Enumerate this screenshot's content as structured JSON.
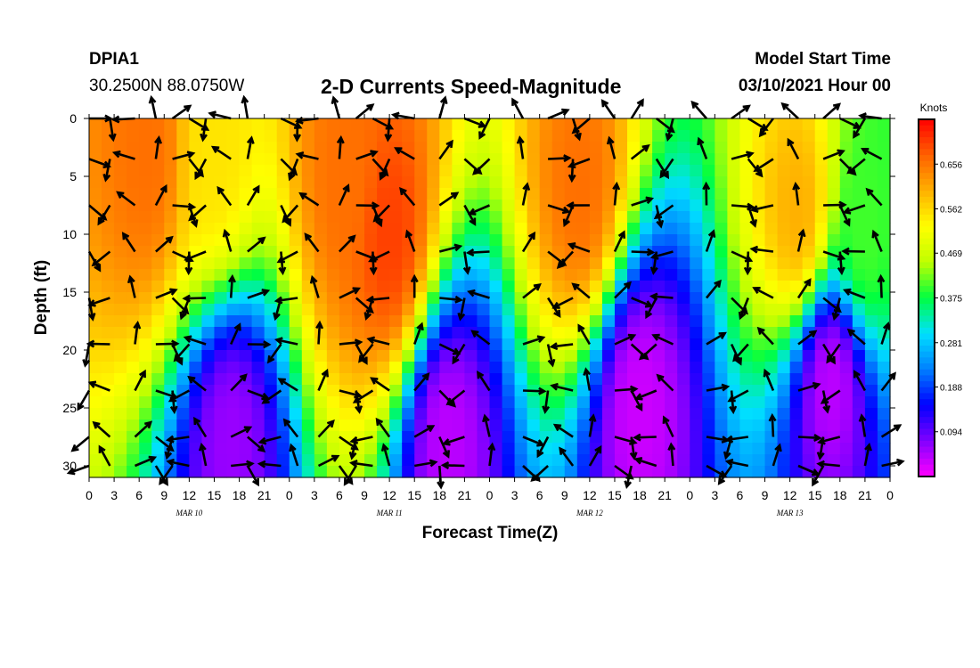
{
  "header": {
    "station": "DPIA1",
    "coords": "30.2500N 88.0750W",
    "title": "2-D Currents Speed-Magnitude",
    "model_start_label": "Model Start Time",
    "model_start_value": "03/10/2021 Hour 00"
  },
  "chart_data": {
    "type": "heatmap",
    "title": "2-D Currents Speed-Magnitude",
    "xlabel": "Forecast Time(Z)",
    "ylabel": "Depth (ft)",
    "x_range_hours": [
      0,
      96
    ],
    "x_tick_labels": [
      "0",
      "3",
      "6",
      "9",
      "12",
      "15",
      "18",
      "21",
      "0",
      "3",
      "6",
      "9",
      "12",
      "15",
      "18",
      "21",
      "0",
      "3",
      "6",
      "9",
      "12",
      "15",
      "18",
      "21",
      "0",
      "3",
      "6",
      "9",
      "12",
      "15",
      "18",
      "21",
      "0"
    ],
    "day_labels": [
      {
        "label": "MAR 10",
        "hour": 12
      },
      {
        "label": "MAR 11",
        "hour": 36
      },
      {
        "label": "MAR 12",
        "hour": 60
      },
      {
        "label": "MAR 13",
        "hour": 84
      }
    ],
    "y_range_ft": [
      0,
      31
    ],
    "y_inverted": true,
    "y_ticks": [
      0,
      5,
      10,
      15,
      20,
      25,
      30
    ],
    "colorbar": {
      "title": "Knots",
      "ticks": [
        0.094,
        0.188,
        0.281,
        0.375,
        0.469,
        0.562,
        0.656
      ],
      "range": [
        0,
        0.75
      ],
      "colors": [
        "#ff00ff",
        "#8000ff",
        "#0000ff",
        "#0080ff",
        "#00e0ff",
        "#00ff40",
        "#c0ff00",
        "#ffff00",
        "#ffb000",
        "#ff6000",
        "#ff0000"
      ]
    },
    "speed_maxima": [
      {
        "hour": 7,
        "depth": 3,
        "speed": 0.66
      },
      {
        "hour": 15,
        "depth": 3,
        "speed": 0.55
      },
      {
        "hour": 31,
        "depth": 5,
        "speed": 0.66
      },
      {
        "hour": 36,
        "depth": 10,
        "speed": 0.7
      },
      {
        "hour": 59,
        "depth": 6,
        "speed": 0.66
      },
      {
        "hour": 85,
        "depth": 8,
        "speed": 0.6
      },
      {
        "hour": 93,
        "depth": 10,
        "speed": 0.4
      }
    ],
    "speed_minima": [
      {
        "hour": 17,
        "depth": 28,
        "speed": 0.06
      },
      {
        "hour": 43,
        "depth": 28,
        "speed": 0.04
      },
      {
        "hour": 66,
        "depth": 25,
        "speed": 0.03
      },
      {
        "hour": 89,
        "depth": 23,
        "speed": 0.04
      }
    ],
    "vector_columns_hours": [
      0,
      2.5,
      5.5,
      8,
      10,
      12,
      14,
      17,
      19,
      23,
      25,
      27.5,
      30,
      32,
      34,
      36,
      39,
      42,
      45,
      48,
      52,
      55,
      58,
      60,
      63,
      65,
      68,
      70,
      74,
      77,
      79,
      82,
      85,
      88,
      90,
      93,
      95
    ],
    "vector_rows_ft": [
      0,
      3.5,
      7.5,
      11.5,
      15.5,
      19.5,
      23.5,
      27.5,
      30
    ]
  }
}
